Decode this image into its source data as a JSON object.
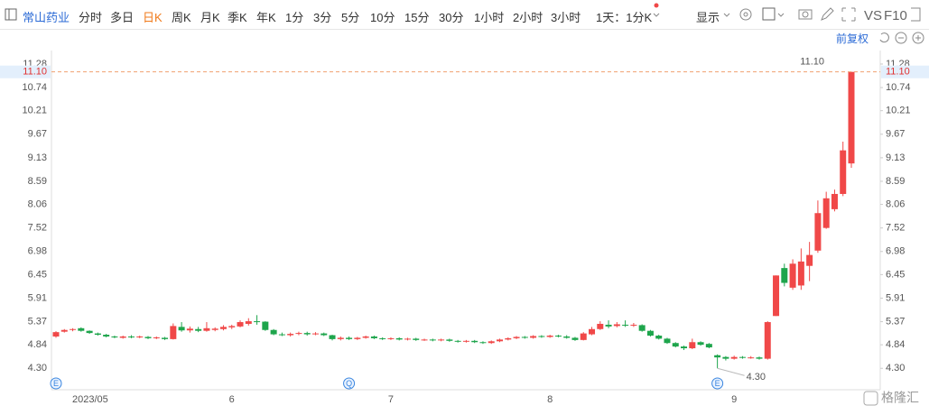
{
  "toolbar": {
    "stock_name": "常山药业",
    "periods": [
      "分时",
      "多日",
      "日K",
      "周K",
      "月K",
      "季K",
      "年K",
      "1分",
      "3分",
      "5分",
      "10分",
      "15分",
      "30分",
      "1小时",
      "2小时",
      "3小时"
    ],
    "multi_period": "1天：1分K",
    "display": "显示",
    "vs": "VS",
    "f10": "F10"
  },
  "adjustment": "前复权",
  "watermark": "格隆汇",
  "chart_data": {
    "type": "candlestick",
    "categories": [
      "2023/05",
      null,
      null,
      null,
      null,
      null,
      null,
      null,
      null,
      null,
      null,
      null,
      null,
      null,
      null,
      null,
      null,
      null,
      null,
      null,
      null,
      "6",
      null,
      null,
      null,
      null,
      null,
      null,
      null,
      null,
      null,
      null,
      null,
      null,
      null,
      null,
      null,
      null,
      null,
      null,
      "7",
      null,
      null,
      null,
      null,
      null,
      null,
      null,
      null,
      null,
      null,
      null,
      null,
      null,
      null,
      null,
      null,
      null,
      null,
      "8",
      null,
      null,
      null,
      null,
      null,
      null,
      null,
      null,
      null,
      null,
      null,
      null,
      null,
      null,
      null,
      null,
      null,
      null,
      null,
      null,
      null,
      "9",
      null,
      null,
      null,
      null,
      null,
      null,
      null,
      null,
      null,
      null,
      null,
      null,
      null,
      null
    ],
    "open": [
      5.03,
      5.14,
      5.18,
      5.22,
      5.16,
      5.1,
      5.07,
      5.03,
      5.0,
      5.03,
      5.01,
      5.02,
      4.99,
      5.0,
      4.97,
      5.25,
      5.17,
      5.2,
      5.16,
      5.18,
      5.2,
      5.24,
      5.26,
      5.32,
      5.38,
      5.37,
      5.18,
      5.08,
      5.06,
      5.09,
      5.11,
      5.08,
      5.1,
      5.06,
      4.97,
      5.0,
      4.97,
      5.0,
      5.03,
      4.99,
      4.97,
      4.99,
      4.96,
      4.98,
      4.95,
      4.96,
      4.94,
      4.96,
      4.93,
      4.91,
      4.93,
      4.9,
      4.88,
      4.92,
      4.96,
      4.99,
      5.02,
      5.0,
      5.04,
      5.02,
      5.05,
      5.03,
      5.0,
      4.95,
      5.08,
      5.2,
      5.3,
      5.27,
      5.3,
      5.28,
      5.29,
      5.16,
      5.05,
      4.98,
      4.88,
      4.8,
      4.76,
      4.9,
      4.86,
      4.6,
      4.56,
      4.52,
      4.56,
      4.54,
      4.55,
      4.52,
      5.5,
      6.6,
      6.15,
      6.2,
      6.65,
      7.0,
      7.52,
      7.95,
      8.3,
      9.0
    ],
    "close": [
      5.13,
      5.18,
      5.2,
      5.16,
      5.11,
      5.07,
      5.03,
      5.01,
      5.03,
      5.01,
      5.03,
      4.99,
      5.01,
      4.97,
      5.27,
      5.17,
      5.21,
      5.16,
      5.22,
      5.21,
      5.25,
      5.27,
      5.36,
      5.38,
      5.36,
      5.18,
      5.08,
      5.06,
      5.09,
      5.11,
      5.08,
      5.1,
      5.06,
      4.97,
      5.0,
      4.97,
      5.0,
      5.03,
      4.99,
      4.97,
      4.99,
      4.96,
      4.98,
      4.95,
      4.96,
      4.94,
      4.96,
      4.93,
      4.91,
      4.93,
      4.9,
      4.88,
      4.92,
      4.96,
      4.99,
      5.02,
      5.0,
      5.04,
      5.02,
      5.05,
      5.03,
      5.0,
      4.95,
      5.1,
      5.2,
      5.32,
      5.26,
      5.31,
      5.28,
      5.3,
      5.16,
      5.05,
      4.98,
      4.88,
      4.8,
      4.76,
      4.9,
      4.84,
      4.78,
      4.55,
      4.52,
      4.56,
      4.54,
      4.55,
      4.52,
      5.36,
      6.43,
      6.26,
      6.7,
      6.75,
      6.9,
      7.86,
      8.2,
      8.3,
      9.3,
      11.1
    ],
    "high": [
      5.15,
      5.2,
      5.22,
      5.24,
      5.17,
      5.12,
      5.09,
      5.05,
      5.05,
      5.06,
      5.05,
      5.04,
      5.03,
      5.02,
      5.33,
      5.36,
      5.26,
      5.25,
      5.36,
      5.24,
      5.29,
      5.3,
      5.4,
      5.45,
      5.52,
      5.38,
      5.2,
      5.12,
      5.12,
      5.14,
      5.14,
      5.13,
      5.12,
      5.07,
      5.03,
      5.03,
      5.02,
      5.05,
      5.05,
      5.01,
      5.01,
      5.01,
      5.0,
      5.0,
      4.98,
      4.98,
      4.98,
      4.98,
      4.95,
      4.95,
      4.95,
      4.92,
      4.94,
      4.98,
      5.01,
      5.04,
      5.04,
      5.06,
      5.06,
      5.07,
      5.07,
      5.06,
      5.02,
      5.13,
      5.25,
      5.38,
      5.4,
      5.36,
      5.4,
      5.34,
      5.31,
      5.18,
      5.07,
      5.0,
      4.9,
      4.82,
      4.98,
      4.92,
      4.88,
      4.62,
      4.58,
      4.59,
      4.58,
      4.58,
      4.57,
      5.38,
      6.43,
      6.7,
      6.8,
      7.05,
      7.2,
      8.15,
      8.35,
      8.4,
      9.5,
      11.1
    ],
    "low": [
      5.0,
      5.12,
      5.15,
      5.14,
      5.09,
      5.05,
      5.01,
      4.99,
      4.98,
      4.99,
      4.99,
      4.97,
      4.97,
      4.95,
      4.96,
      5.14,
      5.12,
      5.13,
      5.14,
      5.15,
      5.17,
      5.2,
      5.24,
      5.28,
      5.3,
      5.16,
      5.06,
      5.04,
      5.03,
      5.06,
      5.05,
      5.06,
      5.04,
      4.94,
      4.94,
      4.95,
      4.95,
      4.98,
      4.97,
      4.95,
      4.95,
      4.94,
      4.94,
      4.93,
      4.93,
      4.92,
      4.92,
      4.91,
      4.89,
      4.89,
      4.88,
      4.86,
      4.86,
      4.9,
      4.94,
      4.97,
      4.98,
      4.98,
      5.0,
      5.0,
      5.01,
      4.98,
      4.93,
      4.94,
      5.06,
      5.18,
      5.22,
      5.24,
      5.25,
      5.25,
      5.14,
      5.03,
      4.96,
      4.86,
      4.78,
      4.72,
      4.74,
      4.82,
      4.76,
      4.3,
      4.48,
      4.5,
      4.52,
      4.52,
      4.5,
      4.5,
      5.5,
      6.18,
      6.1,
      6.1,
      6.3,
      6.95,
      7.5,
      7.9,
      8.25,
      8.9
    ],
    "up_color": "#f04848",
    "down_color": "#1ea54c",
    "ylim": [
      3.85,
      11.59
    ],
    "yticks": [
      {
        "value": 4.3,
        "label": "4.30"
      },
      4.84,
      5.37,
      5.91,
      6.45,
      6.98,
      7.52,
      8.06,
      8.59,
      9.13,
      9.67,
      10.21,
      10.74,
      11.28
    ],
    "current_price": {
      "value": 11.1,
      "label": "11.10"
    },
    "high_annotation": {
      "value": 11.1,
      "label": "11.10"
    },
    "low_annotation": {
      "value": 4.3,
      "label": "4.30"
    },
    "events": [
      {
        "index": 0,
        "label": "E"
      },
      {
        "index": 35,
        "label": "Q"
      },
      {
        "index": 79,
        "label": "E"
      }
    ]
  }
}
